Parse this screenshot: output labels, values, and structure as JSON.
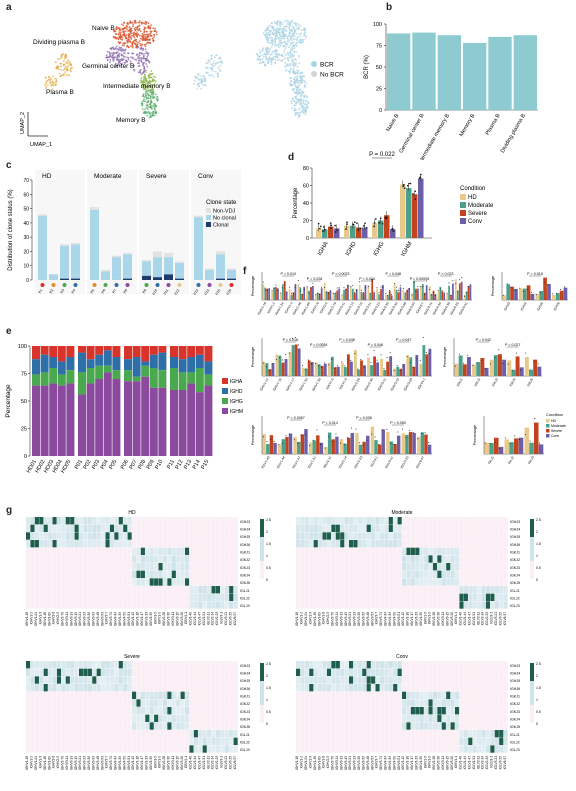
{
  "panel_labels": {
    "a": "a",
    "b": "b",
    "c": "c",
    "d": "d",
    "e": "e",
    "f": "f",
    "g": "g"
  },
  "panel_a": {
    "clusters": [
      "Naive B",
      "Germinal center B",
      "Dividing plasma B",
      "Intermediate memory B",
      "Plasma B",
      "Memory B"
    ],
    "axis_y": "UMAP_2",
    "axis_x": "UMAP_1",
    "legend": [
      "BCR",
      "No BCR"
    ],
    "colors": {
      "naive": "#d9542c",
      "gc": "#8e6cb0",
      "dividing": "#e0a63a",
      "intermediate": "#8cb84a",
      "plasma": "#e6b35a",
      "memory": "#5aab6b",
      "bcr": "#a7d3e5",
      "nobcr": "#d5d5d5"
    }
  },
  "chart_data": [
    {
      "id": "b",
      "type": "bar",
      "categories": [
        "Naive B",
        "Germinal center B",
        "Intermediate memory B",
        "Memory B",
        "Plasma B",
        "Dividing plasma B"
      ],
      "values": [
        89,
        90,
        87,
        78,
        85,
        87
      ],
      "ylabel": "BCR (%)",
      "ylim": [
        0,
        100
      ],
      "yticks": [
        "0",
        "25",
        "50",
        "75",
        "100"
      ],
      "color": "#8ecbd0"
    },
    {
      "id": "c",
      "type": "bar",
      "groups": [
        "HD",
        "Moderate",
        "Severe",
        "Conv"
      ],
      "ylabel": "Distribution of clone status (%)",
      "ylim": [
        0,
        70
      ],
      "yticks": [
        "0",
        "10",
        "20",
        "30",
        "40",
        "50",
        "60",
        "70"
      ],
      "legend_title": "Clone state",
      "series_names": [
        "Non-VDJ",
        "No clonal",
        "Clonal"
      ],
      "colors": [
        "#e2e2e2",
        "#a9d6e8",
        "#1f3a6e"
      ],
      "bars": [
        [
          [
            43,
            2,
            0
          ],
          [
            3,
            1,
            0
          ],
          [
            22,
            1,
            1
          ],
          [
            22,
            2,
            1
          ]
        ],
        [
          [
            48,
            1,
            0
          ],
          [
            5,
            1,
            0
          ],
          [
            14,
            2,
            0
          ],
          [
            15,
            2,
            1
          ]
        ],
        [
          [
            7,
            3,
            3
          ],
          [
            10,
            4,
            2
          ],
          [
            10,
            2,
            4
          ],
          [
            8,
            3,
            1
          ]
        ],
        [
          [
            43,
            1,
            0
          ],
          [
            5,
            2,
            0
          ],
          [
            16,
            1,
            1
          ],
          [
            5,
            1,
            1
          ]
        ]
      ],
      "nonvdj": [
        [
          1,
          0,
          1,
          1
        ],
        [
          2,
          1,
          1,
          1
        ],
        [
          1,
          4,
          3,
          1
        ],
        [
          1,
          1,
          2,
          1
        ]
      ]
    },
    {
      "id": "d",
      "type": "bar",
      "categories": [
        "IGHA",
        "IGHD",
        "IGHG",
        "IGHM"
      ],
      "series_names": [
        "HD",
        "Moderate",
        "Severe",
        "Conv"
      ],
      "colors": [
        "#e6c98b",
        "#4aa08a",
        "#c2441e",
        "#6c5fa8"
      ],
      "values": [
        [
          11,
          10,
          13,
          11
        ],
        [
          14,
          14,
          12,
          12
        ],
        [
          17,
          20,
          26,
          10
        ],
        [
          61,
          57,
          50,
          68
        ]
      ],
      "ylabel": "Percentage",
      "ylim": [
        0,
        80
      ],
      "yticks": [
        "0",
        "20",
        "40",
        "60",
        "80"
      ],
      "annotation": "P = 0.022",
      "legend_title": "Condition"
    },
    {
      "id": "e",
      "type": "bar",
      "stacked": true,
      "ylabel": "Percentage",
      "ylim": [
        0,
        100
      ],
      "yticks": [
        "0",
        "25",
        "50",
        "75",
        "100"
      ],
      "series_names": [
        "IGHA",
        "IGHD",
        "IGHG",
        "IGHM"
      ],
      "colors": [
        "#d9342b",
        "#2e6fa7",
        "#4aa84f",
        "#8c4a9e"
      ],
      "categories": [
        "HD01",
        "HD02",
        "HD03",
        "HD04",
        "HD05",
        "P01",
        "P02",
        "P03",
        "P04",
        "P05",
        "P06",
        "P07",
        "P08",
        "P09",
        "P10",
        "P11",
        "P12",
        "P13",
        "P14",
        "P15"
      ],
      "segments": [
        [
          12,
          14,
          10,
          64
        ],
        [
          8,
          16,
          12,
          64
        ],
        [
          10,
          10,
          14,
          66
        ],
        [
          14,
          12,
          10,
          64
        ],
        [
          10,
          12,
          12,
          66
        ],
        [
          6,
          18,
          20,
          56
        ],
        [
          12,
          8,
          14,
          66
        ],
        [
          8,
          10,
          12,
          70
        ],
        [
          4,
          14,
          6,
          76
        ],
        [
          10,
          12,
          8,
          70
        ],
        [
          12,
          10,
          10,
          68
        ],
        [
          10,
          18,
          4,
          68
        ],
        [
          14,
          4,
          10,
          72
        ],
        [
          8,
          12,
          18,
          62
        ],
        [
          6,
          16,
          16,
          62
        ],
        [
          10,
          10,
          20,
          60
        ],
        [
          12,
          12,
          16,
          60
        ],
        [
          10,
          14,
          10,
          66
        ],
        [
          8,
          12,
          22,
          58
        ],
        [
          14,
          12,
          10,
          64
        ]
      ]
    }
  ],
  "panel_f": {
    "ylabel": "Percentage",
    "ylabel_small": "Percentage",
    "legend_title": "Condition",
    "legend_items": [
      "HD",
      "Moderate",
      "Severe",
      "Conv"
    ],
    "row1_annotations": [
      "P = 0.010",
      "P = 0.028",
      "P = 0.0023",
      "P = 0.034",
      "P = 0.048",
      "P = 0.00005",
      "P = 0.023"
    ],
    "row2_annotations": [
      "P = 0.016",
      "P = 0.0054",
      "P = 0.048",
      "P = 0.046",
      "P = 0.047"
    ],
    "row3_annotations": [
      "P = 0.0067",
      "P = 0.014",
      "P = 0.038",
      "P = 0.050"
    ],
    "side1_annotations": [
      "P = 0.018"
    ],
    "side2_annotations": [
      "P = 0.042",
      "P = 0.027"
    ],
    "row1_ticks": [
      "IGHV1-18",
      "IGHV1-2",
      "IGHV1-24",
      "IGHV1-3",
      "IGHV1-46",
      "IGHV1-69",
      "IGHV1-8",
      "IGHV2-5",
      "IGHV2-70",
      "IGHV3-11",
      "IGHV3-13",
      "IGHV3-15",
      "IGHV3-21",
      "IGHV3-23",
      "IGHV3-30",
      "IGHV3-33",
      "IGHV3-48",
      "IGHV3-53",
      "IGHV3-7",
      "IGHV3-74",
      "IGHV4-34",
      "IGHV4-39",
      "IGHV4-59",
      "IGHV5-51"
    ],
    "row2_ticks": [
      "IGKV1-12",
      "IGKV1-16",
      "IGKV1-17",
      "IGKV1-33",
      "IGKV1-39",
      "IGKV1-5",
      "IGKV1-9",
      "IGKV2-28",
      "IGKV2-30",
      "IGKV3-11",
      "IGKV3-15",
      "IGKV3-20",
      "IGKV4-1"
    ],
    "row3_ticks": [
      "IGLV1-40",
      "IGLV1-44",
      "IGLV1-47",
      "IGLV1-51",
      "IGLV2-11",
      "IGLV2-14",
      "IGLV2-23",
      "IGLV3-1",
      "IGLV3-21",
      "IGLV3-25",
      "IGLV6-57"
    ],
    "side1_ticks": [
      "IGHJ3",
      "IGHJ4",
      "IGHJ5",
      "IGHJ6"
    ],
    "side2_ticks": [
      "IGKJ1",
      "IGKJ2",
      "IGKJ3",
      "IGKJ4",
      "IGKJ5"
    ],
    "side3_ticks": [
      "IGLJ1",
      "IGLJ2",
      "IGLJ3"
    ]
  },
  "panel_g": {
    "titles": [
      "HD",
      "Moderate",
      "Severe",
      "Conv"
    ],
    "row_labels": [
      "IGHJ3",
      "IGHJ4",
      "IGHJ5",
      "IGHJ6",
      "IGKJ1",
      "IGKJ2",
      "IGKJ3",
      "IGKJ4",
      "IGKJ5",
      "IGLJ1",
      "IGLJ2",
      "IGLJ3"
    ],
    "colorbar_ticks": [
      "0",
      "0.5",
      "1",
      "1.5",
      "2",
      "2.5"
    ],
    "col_labels": [
      "IGHV1-18",
      "IGHV1-2",
      "IGHV1-24",
      "IGHV1-3",
      "IGHV1-46",
      "IGHV1-69",
      "IGHV1-8",
      "IGHV2-5",
      "IGHV2-70",
      "IGHV3-11",
      "IGHV3-13",
      "IGHV3-15",
      "IGHV3-21",
      "IGHV3-23",
      "IGHV3-30",
      "IGHV3-33",
      "IGHV3-48",
      "IGHV3-53",
      "IGHV3-7",
      "IGHV3-74",
      "IGHV4-34",
      "IGHV4-39",
      "IGHV4-59",
      "IGHV5-51",
      "IGKV1-12",
      "IGKV1-16",
      "IGKV1-17",
      "IGKV1-33",
      "IGKV1-39",
      "IGKV1-5",
      "IGKV1-9",
      "IGKV2-28",
      "IGKV2-30",
      "IGKV3-11",
      "IGKV3-15",
      "IGKV3-20",
      "IGKV4-1",
      "IGLV1-40",
      "IGLV1-44",
      "IGLV1-47",
      "IGLV1-51",
      "IGLV2-11",
      "IGLV2-14",
      "IGLV2-23",
      "IGLV3-1",
      "IGLV3-21",
      "IGLV3-25",
      "IGLV6-57"
    ],
    "colors": {
      "low": "#fbeef4",
      "mid": "#cfe3ea",
      "high": "#1f5e4c"
    }
  }
}
